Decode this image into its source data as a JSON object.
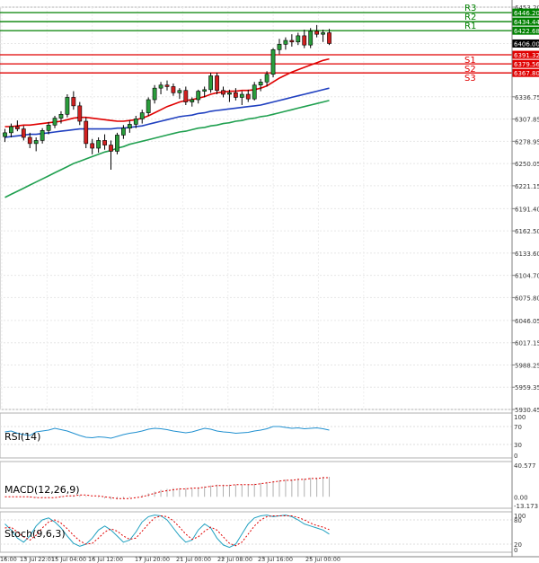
{
  "chart_data": {
    "type": "candlestick",
    "instrument_note": "",
    "price_axis": {
      "labels": [
        "6453.20",
        "6406.00",
        "6336.75",
        "6307.85",
        "6278.95",
        "6250.05",
        "6221.15",
        "6191.40",
        "6162.50",
        "6133.60",
        "6104.70",
        "6075.80",
        "6046.05",
        "6017.15",
        "5988.25",
        "5959.35",
        "5930.45"
      ],
      "ylim": [
        5930.45,
        6453.2
      ]
    },
    "levels": [
      {
        "name": "R3",
        "value": 6446.2,
        "label": "6446.20",
        "color": "#008000"
      },
      {
        "name": "R2",
        "value": 6434.44,
        "label": "6434.44",
        "color": "#008000"
      },
      {
        "name": "R1",
        "value": 6422.68,
        "label": "6422.68",
        "color": "#008000"
      },
      {
        "name": "S1",
        "value": 6391.32,
        "label": "6391.32",
        "color": "#e00000"
      },
      {
        "name": "S2",
        "value": 6379.56,
        "label": "6379.56",
        "color": "#e00000"
      },
      {
        "name": "S3",
        "value": 6367.8,
        "label": "6367.80",
        "color": "#e00000"
      }
    ],
    "current_price": {
      "value": 6406.0,
      "label": "6406.00"
    },
    "x_axis_labels": [
      "16:00",
      "13 Jul 22:01",
      "15 Jul 04:00",
      "16 Jul 12:00",
      "17 Jul 20:00",
      "21 Jul 00:00",
      "22 Jul 08:00",
      "23 Jul 16:00",
      "25 Jul 00:00"
    ],
    "candles": [
      [
        6285,
        6295,
        6278,
        6290
      ],
      [
        6290,
        6302,
        6284,
        6298
      ],
      [
        6298,
        6306,
        6292,
        6295
      ],
      [
        6295,
        6299,
        6280,
        6284
      ],
      [
        6284,
        6290,
        6270,
        6276
      ],
      [
        6276,
        6284,
        6266,
        6280
      ],
      [
        6280,
        6296,
        6276,
        6293
      ],
      [
        6293,
        6304,
        6288,
        6300
      ],
      [
        6300,
        6312,
        6296,
        6309
      ],
      [
        6309,
        6318,
        6302,
        6314
      ],
      [
        6314,
        6340,
        6310,
        6336
      ],
      [
        6336,
        6344,
        6320,
        6325
      ],
      [
        6325,
        6330,
        6300,
        6305
      ],
      [
        6305,
        6310,
        6270,
        6276
      ],
      [
        6276,
        6282,
        6262,
        6270
      ],
      [
        6270,
        6284,
        6264,
        6280
      ],
      [
        6280,
        6288,
        6268,
        6274
      ],
      [
        6274,
        6280,
        6242,
        6266
      ],
      [
        6266,
        6290,
        6262,
        6287
      ],
      [
        6287,
        6300,
        6282,
        6296
      ],
      [
        6296,
        6306,
        6290,
        6301
      ],
      [
        6301,
        6312,
        6296,
        6308
      ],
      [
        6308,
        6320,
        6302,
        6316
      ],
      [
        6316,
        6336,
        6312,
        6333
      ],
      [
        6333,
        6352,
        6328,
        6348
      ],
      [
        6348,
        6356,
        6340,
        6352
      ],
      [
        6352,
        6358,
        6345,
        6350
      ],
      [
        6350,
        6354,
        6338,
        6342
      ],
      [
        6342,
        6348,
        6334,
        6345
      ],
      [
        6345,
        6350,
        6326,
        6330
      ],
      [
        6330,
        6336,
        6324,
        6333
      ],
      [
        6333,
        6346,
        6328,
        6344
      ],
      [
        6344,
        6350,
        6336,
        6346
      ],
      [
        6346,
        6368,
        6342,
        6364
      ],
      [
        6364,
        6368,
        6340,
        6345
      ],
      [
        6345,
        6350,
        6336,
        6340
      ],
      [
        6340,
        6346,
        6330,
        6342
      ],
      [
        6342,
        6348,
        6332,
        6336
      ],
      [
        6336,
        6344,
        6326,
        6340
      ],
      [
        6340,
        6346,
        6330,
        6334
      ],
      [
        6334,
        6356,
        6332,
        6352
      ],
      [
        6352,
        6360,
        6344,
        6356
      ],
      [
        6356,
        6370,
        6350,
        6366
      ],
      [
        6366,
        6400,
        6362,
        6398
      ],
      [
        6398,
        6412,
        6392,
        6405
      ],
      [
        6405,
        6414,
        6398,
        6410
      ],
      [
        6410,
        6418,
        6402,
        6408
      ],
      [
        6408,
        6420,
        6404,
        6416
      ],
      [
        6416,
        6424,
        6400,
        6404
      ],
      [
        6404,
        6426,
        6400,
        6422
      ],
      [
        6422,
        6430,
        6414,
        6418
      ],
      [
        6418,
        6424,
        6408,
        6420
      ],
      [
        6420,
        6425,
        6404,
        6406
      ]
    ],
    "moving_averages": [
      {
        "name": "MA short",
        "color": "#e00000",
        "values": [
          6298,
          6298,
          6299,
          6300,
          6300,
          6301,
          6302,
          6303,
          6304,
          6305,
          6307,
          6309,
          6310,
          6310,
          6309,
          6308,
          6307,
          6306,
          6305,
          6305,
          6306,
          6307,
          6309,
          6312,
          6316,
          6320,
          6324,
          6327,
          6330,
          6332,
          6333,
          6335,
          6337,
          6340,
          6342,
          6343,
          6344,
          6344,
          6345,
          6345,
          6346,
          6348,
          6351,
          6356,
          6361,
          6365,
          6369,
          6372,
          6375,
          6378,
          6381,
          6384,
          6386
        ]
      },
      {
        "name": "MA mid",
        "color": "#2040c0",
        "values": [
          6284,
          6285,
          6286,
          6287,
          6288,
          6288,
          6289,
          6290,
          6291,
          6292,
          6293,
          6294,
          6295,
          6295,
          6295,
          6295,
          6295,
          6295,
          6296,
          6296,
          6297,
          6298,
          6299,
          6301,
          6303,
          6305,
          6307,
          6309,
          6311,
          6312,
          6313,
          6315,
          6316,
          6318,
          6319,
          6320,
          6321,
          6322,
          6323,
          6324,
          6325,
          6326,
          6328,
          6330,
          6332,
          6334,
          6336,
          6338,
          6340,
          6342,
          6344,
          6346,
          6348
        ]
      },
      {
        "name": "MA long",
        "color": "#20a050",
        "values": [
          6206,
          6210,
          6214,
          6218,
          6222,
          6226,
          6230,
          6234,
          6238,
          6242,
          6246,
          6250,
          6253,
          6256,
          6259,
          6262,
          6265,
          6267,
          6270,
          6272,
          6275,
          6277,
          6279,
          6281,
          6283,
          6285,
          6287,
          6289,
          6291,
          6292,
          6294,
          6296,
          6297,
          6299,
          6300,
          6302,
          6303,
          6305,
          6306,
          6308,
          6309,
          6311,
          6312,
          6314,
          6316,
          6318,
          6320,
          6322,
          6324,
          6326,
          6328,
          6330,
          6332
        ]
      }
    ],
    "indicators": [
      {
        "name": "RSI(14)",
        "label": "RSI(14)",
        "axis": [
          "100",
          "70",
          "30",
          "0"
        ],
        "ylim": [
          0,
          100
        ],
        "values": [
          58,
          60,
          55,
          52,
          50,
          58,
          60,
          62,
          66,
          63,
          60,
          55,
          50,
          46,
          45,
          47,
          46,
          44,
          48,
          52,
          55,
          57,
          60,
          64,
          66,
          65,
          63,
          60,
          58,
          56,
          58,
          62,
          66,
          64,
          60,
          58,
          57,
          55,
          56,
          57,
          60,
          62,
          65,
          70,
          70,
          68,
          66,
          67,
          65,
          66,
          67,
          65,
          62
        ]
      },
      {
        "name": "MACD(12,26,9)",
        "label": "MACD(12,26,9)",
        "axis": [
          "40.577",
          "0.00",
          "-13.173"
        ],
        "ylim": [
          -13.173,
          40.577
        ],
        "histogram": [
          0,
          0,
          0,
          0,
          -1,
          -1,
          -1,
          -1,
          0,
          1,
          2,
          2,
          2,
          1,
          0,
          -1,
          -2,
          -3,
          -3,
          -2,
          -1,
          0,
          2,
          4,
          6,
          8,
          9,
          10,
          10,
          10,
          10,
          11,
          12,
          13,
          14,
          14,
          14,
          14,
          14,
          14,
          15,
          16,
          17,
          18,
          19,
          20,
          20,
          21,
          21,
          22,
          22,
          23,
          23
        ],
        "signal": [
          0,
          0,
          0,
          0,
          0,
          -1,
          -1,
          -1,
          -1,
          0,
          1,
          1,
          2,
          2,
          1,
          1,
          0,
          -1,
          -2,
          -2,
          -2,
          -1,
          0,
          2,
          4,
          6,
          7,
          8,
          9,
          9,
          10,
          10,
          11,
          12,
          13,
          13,
          13,
          14,
          14,
          14,
          14,
          15,
          16,
          17,
          18,
          19,
          19,
          20,
          20,
          21,
          21,
          22,
          22
        ]
      },
      {
        "name": "Stoch(9,6,3)",
        "label": "Stoch(9,6,3)",
        "axis": [
          "100",
          "80",
          "20",
          "0"
        ],
        "ylim": [
          0,
          100
        ],
        "k": [
          70,
          55,
          35,
          25,
          40,
          65,
          80,
          85,
          75,
          60,
          40,
          22,
          15,
          20,
          35,
          55,
          65,
          55,
          40,
          25,
          30,
          50,
          75,
          88,
          92,
          90,
          80,
          60,
          40,
          25,
          30,
          55,
          70,
          60,
          35,
          18,
          12,
          20,
          45,
          70,
          85,
          90,
          92,
          88,
          90,
          92,
          88,
          80,
          70,
          65,
          60,
          55,
          45
        ],
        "d": [
          60,
          62,
          50,
          38,
          30,
          42,
          60,
          75,
          80,
          72,
          58,
          42,
          28,
          20,
          22,
          35,
          50,
          58,
          52,
          40,
          32,
          35,
          52,
          70,
          85,
          90,
          88,
          78,
          62,
          45,
          32,
          38,
          52,
          62,
          55,
          38,
          22,
          16,
          25,
          45,
          65,
          80,
          88,
          90,
          90,
          90,
          90,
          86,
          80,
          72,
          66,
          62,
          56
        ]
      }
    ]
  }
}
